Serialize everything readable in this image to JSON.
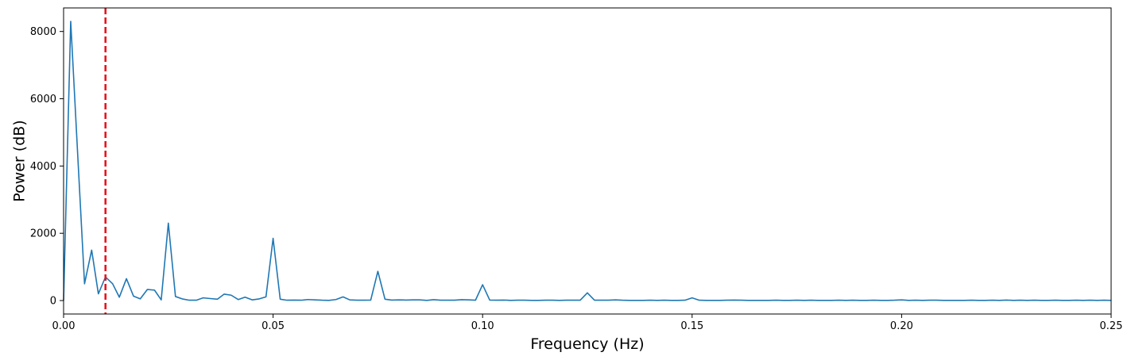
{
  "chart_data": {
    "type": "line",
    "title": "",
    "xlabel": "Frequency (Hz)",
    "ylabel": "Power (dB)",
    "xlim": [
      0,
      0.25
    ],
    "ylim": [
      -400,
      8700
    ],
    "xticks": [
      0.0,
      0.05,
      0.1,
      0.15,
      0.2,
      0.25
    ],
    "xtick_labels": [
      "0.00",
      "0.05",
      "0.10",
      "0.15",
      "0.20",
      "0.25"
    ],
    "yticks": [
      0,
      2000,
      4000,
      6000,
      8000
    ],
    "ytick_labels": [
      "0",
      "2000",
      "4000",
      "6000",
      "8000"
    ],
    "grid": false,
    "legend": "none",
    "series": [
      {
        "color": "#1f77b4",
        "x": [
          0.0,
          0.0017,
          0.0033,
          0.005,
          0.0067,
          0.0083,
          0.01,
          0.0117,
          0.0133,
          0.015,
          0.0167,
          0.0183,
          0.02,
          0.0217,
          0.0233,
          0.025,
          0.0267,
          0.0283,
          0.03,
          0.0317,
          0.0333,
          0.035,
          0.0367,
          0.0383,
          0.04,
          0.0417,
          0.0433,
          0.045,
          0.0467,
          0.0483,
          0.05,
          0.0517,
          0.0533,
          0.055,
          0.0567,
          0.0583,
          0.06,
          0.0617,
          0.0633,
          0.065,
          0.0667,
          0.0683,
          0.07,
          0.0717,
          0.0733,
          0.075,
          0.0767,
          0.0783,
          0.08,
          0.0817,
          0.0833,
          0.085,
          0.0867,
          0.0883,
          0.09,
          0.0917,
          0.0933,
          0.095,
          0.0967,
          0.0983,
          0.1,
          0.1017,
          0.1033,
          0.105,
          0.1067,
          0.1083,
          0.11,
          0.1117,
          0.1133,
          0.115,
          0.1167,
          0.1183,
          0.12,
          0.1217,
          0.1233,
          0.125,
          0.1267,
          0.1283,
          0.13,
          0.1317,
          0.1333,
          0.135,
          0.1367,
          0.1383,
          0.14,
          0.1417,
          0.1433,
          0.145,
          0.1467,
          0.1483,
          0.15,
          0.1517,
          0.1533,
          0.155,
          0.1567,
          0.1583,
          0.16,
          0.1617,
          0.1633,
          0.165,
          0.1667,
          0.1683,
          0.17,
          0.1717,
          0.1733,
          0.175,
          0.1767,
          0.1783,
          0.18,
          0.1817,
          0.1833,
          0.185,
          0.1867,
          0.1883,
          0.19,
          0.1917,
          0.1933,
          0.195,
          0.1967,
          0.1983,
          0.2,
          0.2017,
          0.2033,
          0.205,
          0.2067,
          0.2083,
          0.21,
          0.2117,
          0.2133,
          0.215,
          0.2167,
          0.2183,
          0.22,
          0.2217,
          0.2233,
          0.225,
          0.2267,
          0.2283,
          0.23,
          0.2317,
          0.2333,
          0.235,
          0.2367,
          0.2383,
          0.24,
          0.2417,
          0.2433,
          0.245,
          0.2467,
          0.2483,
          0.25
        ],
        "y": [
          0,
          8300,
          4500,
          500,
          1500,
          200,
          700,
          500,
          100,
          650,
          130,
          50,
          330,
          310,
          20,
          2300,
          120,
          50,
          10,
          10,
          80,
          60,
          40,
          190,
          160,
          30,
          100,
          20,
          50,
          110,
          1850,
          40,
          10,
          15,
          10,
          30,
          20,
          10,
          5,
          30,
          110,
          20,
          10,
          10,
          15,
          870,
          40,
          15,
          20,
          15,
          20,
          20,
          5,
          25,
          10,
          10,
          10,
          25,
          20,
          10,
          470,
          15,
          10,
          15,
          5,
          10,
          10,
          5,
          5,
          10,
          10,
          5,
          10,
          10,
          10,
          230,
          10,
          10,
          10,
          20,
          10,
          5,
          5,
          5,
          10,
          5,
          10,
          5,
          5,
          10,
          80,
          10,
          5,
          5,
          5,
          10,
          15,
          10,
          5,
          5,
          5,
          5,
          10,
          5,
          5,
          10,
          5,
          10,
          5,
          5,
          5,
          10,
          5,
          10,
          5,
          5,
          10,
          5,
          5,
          10,
          20,
          5,
          10,
          5,
          10,
          10,
          5,
          5,
          5,
          5,
          10,
          5,
          5,
          10,
          5,
          15,
          5,
          10,
          5,
          10,
          5,
          5,
          10,
          5,
          5,
          10,
          5,
          10,
          5,
          10,
          5
        ]
      }
    ],
    "annotations": [
      {
        "type": "vline",
        "x": 0.01,
        "color": "#e8141e",
        "style": "dashed"
      }
    ]
  }
}
